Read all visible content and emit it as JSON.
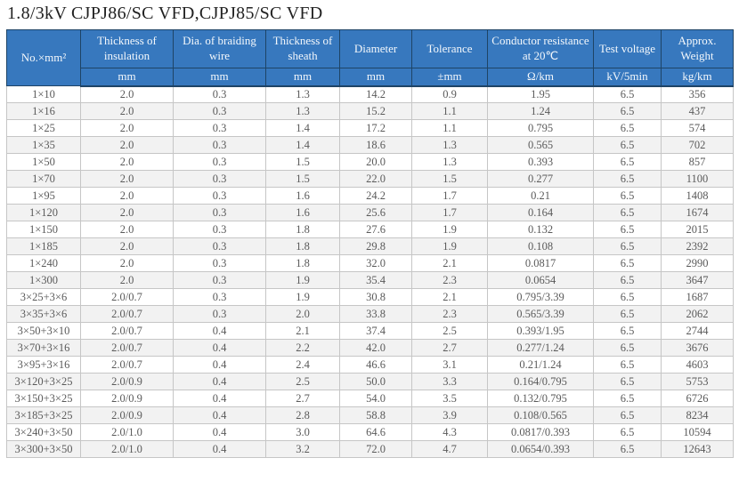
{
  "title": "1.8/3kV CJPJ86/SC VFD,CJPJ85/SC VFD",
  "table": {
    "columns": [
      {
        "label": "No.×mm²",
        "unit": ""
      },
      {
        "label": "Thickness of insulation",
        "unit": "mm"
      },
      {
        "label": "Dia. of braiding wire",
        "unit": "mm"
      },
      {
        "label": "Thickness of sheath",
        "unit": "mm"
      },
      {
        "label": "Diameter",
        "unit": "mm"
      },
      {
        "label": "Tolerance",
        "unit": "±mm"
      },
      {
        "label": "Conductor resistance at 20℃",
        "unit": "Ω/km"
      },
      {
        "label": "Test voltage",
        "unit": "kV/5min"
      },
      {
        "label": "Approx. Weight",
        "unit": "kg/km"
      }
    ],
    "rows": [
      [
        "1×10",
        "2.0",
        "0.3",
        "1.3",
        "14.2",
        "0.9",
        "1.95",
        "6.5",
        "356"
      ],
      [
        "1×16",
        "2.0",
        "0.3",
        "1.3",
        "15.2",
        "1.1",
        "1.24",
        "6.5",
        "437"
      ],
      [
        "1×25",
        "2.0",
        "0.3",
        "1.4",
        "17.2",
        "1.1",
        "0.795",
        "6.5",
        "574"
      ],
      [
        "1×35",
        "2.0",
        "0.3",
        "1.4",
        "18.6",
        "1.3",
        "0.565",
        "6.5",
        "702"
      ],
      [
        "1×50",
        "2.0",
        "0.3",
        "1.5",
        "20.0",
        "1.3",
        "0.393",
        "6.5",
        "857"
      ],
      [
        "1×70",
        "2.0",
        "0.3",
        "1.5",
        "22.0",
        "1.5",
        "0.277",
        "6.5",
        "1100"
      ],
      [
        "1×95",
        "2.0",
        "0.3",
        "1.6",
        "24.2",
        "1.7",
        "0.21",
        "6.5",
        "1408"
      ],
      [
        "1×120",
        "2.0",
        "0.3",
        "1.6",
        "25.6",
        "1.7",
        "0.164",
        "6.5",
        "1674"
      ],
      [
        "1×150",
        "2.0",
        "0.3",
        "1.8",
        "27.6",
        "1.9",
        "0.132",
        "6.5",
        "2015"
      ],
      [
        "1×185",
        "2.0",
        "0.3",
        "1.8",
        "29.8",
        "1.9",
        "0.108",
        "6.5",
        "2392"
      ],
      [
        "1×240",
        "2.0",
        "0.3",
        "1.8",
        "32.0",
        "2.1",
        "0.0817",
        "6.5",
        "2990"
      ],
      [
        "1×300",
        "2.0",
        "0.3",
        "1.9",
        "35.4",
        "2.3",
        "0.0654",
        "6.5",
        "3647"
      ],
      [
        "3×25+3×6",
        "2.0/0.7",
        "0.3",
        "1.9",
        "30.8",
        "2.1",
        "0.795/3.39",
        "6.5",
        "1687"
      ],
      [
        "3×35+3×6",
        "2.0/0.7",
        "0.3",
        "2.0",
        "33.8",
        "2.3",
        "0.565/3.39",
        "6.5",
        "2062"
      ],
      [
        "3×50+3×10",
        "2.0/0.7",
        "0.4",
        "2.1",
        "37.4",
        "2.5",
        "0.393/1.95",
        "6.5",
        "2744"
      ],
      [
        "3×70+3×16",
        "2.0/0.7",
        "0.4",
        "2.2",
        "42.0",
        "2.7",
        "0.277/1.24",
        "6.5",
        "3676"
      ],
      [
        "3×95+3×16",
        "2.0/0.7",
        "0.4",
        "2.4",
        "46.6",
        "3.1",
        "0.21/1.24",
        "6.5",
        "4603"
      ],
      [
        "3×120+3×25",
        "2.0/0.9",
        "0.4",
        "2.5",
        "50.0",
        "3.3",
        "0.164/0.795",
        "6.5",
        "5753"
      ],
      [
        "3×150+3×25",
        "2.0/0.9",
        "0.4",
        "2.7",
        "54.0",
        "3.5",
        "0.132/0.795",
        "6.5",
        "6726"
      ],
      [
        "3×185+3×25",
        "2.0/0.9",
        "0.4",
        "2.8",
        "58.8",
        "3.9",
        "0.108/0.565",
        "6.5",
        "8234"
      ],
      [
        "3×240+3×50",
        "2.0/1.0",
        "0.4",
        "3.0",
        "64.6",
        "4.3",
        "0.0817/0.393",
        "6.5",
        "10594"
      ],
      [
        "3×300+3×50",
        "2.0/1.0",
        "0.4",
        "3.2",
        "72.0",
        "4.7",
        "0.0654/0.393",
        "6.5",
        "12643"
      ]
    ]
  },
  "colors": {
    "header_bg": "#3778BE",
    "header_border": "#1E4466",
    "header_text": "#f4f8fc",
    "row_alt_bg": "#f2f2f2",
    "cell_border": "#c6c6c6",
    "cell_text": "#5a5a5a"
  }
}
